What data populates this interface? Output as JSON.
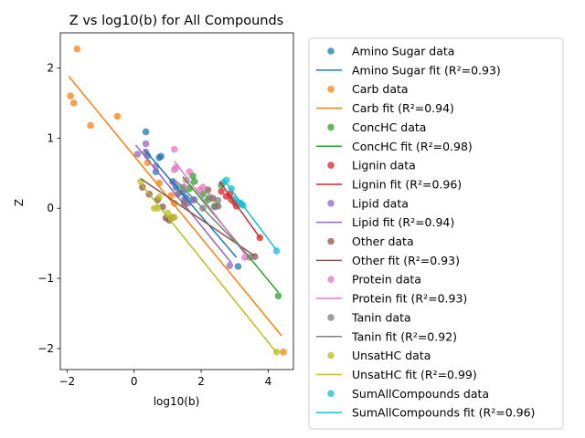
{
  "chart_data": {
    "type": "scatter",
    "title": "Z vs log10(b) for All Compounds",
    "xlabel": "log10(b)",
    "ylabel": "Z",
    "xlim": [
      -2.2,
      4.75
    ],
    "ylim": [
      -2.3,
      2.5
    ],
    "xticks": [
      -2,
      0,
      2,
      4
    ],
    "yticks": [
      -2,
      -1,
      0,
      1,
      2
    ],
    "legend_position": "outside-right",
    "series": [
      {
        "name": "Amino Sugar",
        "color": "#1f77b4",
        "data_label": "Amino Sugar data",
        "fit_label": "Amino Sugar fit (R²=0.93)",
        "points": [
          [
            0.35,
            1.09
          ],
          [
            0.4,
            0.75
          ],
          [
            0.65,
            0.52
          ],
          [
            0.75,
            0.72
          ],
          [
            0.8,
            0.74
          ],
          [
            1.15,
            0.38
          ],
          [
            1.25,
            0.3
          ],
          [
            1.45,
            0.23
          ],
          [
            1.55,
            0.15
          ],
          [
            1.75,
            0.12
          ],
          [
            3.1,
            -0.83
          ]
        ],
        "fit": [
          [
            0.3,
            0.84
          ],
          [
            3.05,
            -0.7
          ]
        ]
      },
      {
        "name": "Carb",
        "color": "#ff7f0e",
        "data_label": "Carb data",
        "fit_label": "Carb fit (R²=0.94)",
        "points": [
          [
            -1.9,
            1.6
          ],
          [
            -1.8,
            1.5
          ],
          [
            -1.7,
            2.27
          ],
          [
            -1.3,
            1.18
          ],
          [
            -0.5,
            1.31
          ],
          [
            0.4,
            0.65
          ],
          [
            0.75,
            0.36
          ],
          [
            1.1,
            0.18
          ],
          [
            1.2,
            0.07
          ],
          [
            1.5,
            0.05
          ],
          [
            4.45,
            -2.05
          ]
        ],
        "fit": [
          [
            -1.95,
            1.88
          ],
          [
            4.4,
            -1.82
          ]
        ]
      },
      {
        "name": "ConcHC",
        "color": "#2ca02c",
        "data_label": "ConcHC data",
        "fit_label": "ConcHC fit (R²=0.98)",
        "points": [
          [
            1.45,
            0.3
          ],
          [
            1.65,
            0.28
          ],
          [
            1.75,
            0.46
          ],
          [
            1.8,
            0.38
          ],
          [
            2.05,
            0.2
          ],
          [
            2.2,
            0.12
          ],
          [
            2.4,
            0.03
          ],
          [
            2.6,
            0.33
          ],
          [
            4.3,
            -1.25
          ]
        ],
        "fit": [
          [
            1.45,
            0.45
          ],
          [
            4.3,
            -1.2
          ]
        ]
      },
      {
        "name": "Lignin",
        "color": "#d62728",
        "data_label": "Lignin data",
        "fit_label": "Lignin fit (R²=0.96)",
        "points": [
          [
            2.6,
            0.24
          ],
          [
            2.75,
            0.17
          ],
          [
            2.85,
            0.2
          ],
          [
            2.9,
            0.12
          ],
          [
            3.0,
            0.08
          ],
          [
            3.05,
            0.03
          ],
          [
            3.75,
            -0.42
          ]
        ],
        "fit": [
          [
            2.55,
            0.38
          ],
          [
            3.75,
            -0.42
          ]
        ]
      },
      {
        "name": "Lipid",
        "color": "#9467bd",
        "data_label": "Lipid data",
        "fit_label": "Lipid fit (R²=0.94)",
        "points": [
          [
            0.1,
            0.77
          ],
          [
            0.35,
            0.92
          ],
          [
            0.35,
            0.8
          ],
          [
            0.65,
            0.6
          ],
          [
            1.2,
            0.36
          ],
          [
            1.3,
            0.2
          ],
          [
            1.5,
            0.13
          ],
          [
            1.6,
            0.07
          ],
          [
            1.8,
            0.12
          ],
          [
            2.85,
            -0.82
          ]
        ],
        "fit": [
          [
            0.05,
            0.9
          ],
          [
            2.9,
            -0.78
          ]
        ]
      },
      {
        "name": "Other",
        "color": "#8c564b",
        "data_label": "Other data",
        "fit_label": "Other fit (R²=0.93)",
        "points": [
          [
            0.25,
            0.3
          ],
          [
            0.45,
            0.2
          ],
          [
            0.7,
            0.12
          ],
          [
            0.85,
            0.02
          ],
          [
            0.95,
            -0.14
          ],
          [
            1.05,
            -0.17
          ],
          [
            1.15,
            -0.13
          ],
          [
            2.2,
            0.26
          ],
          [
            2.35,
            0.14
          ],
          [
            2.5,
            0.03
          ],
          [
            3.6,
            -0.69
          ]
        ],
        "fit": [
          [
            0.2,
            0.42
          ],
          [
            3.6,
            -0.68
          ]
        ]
      },
      {
        "name": "Protein",
        "color": "#e377c2",
        "data_label": "Protein data",
        "fit_label": "Protein fit (R²=0.93)",
        "points": [
          [
            1.2,
            0.84
          ],
          [
            1.25,
            0.58
          ],
          [
            1.2,
            0.55
          ],
          [
            1.65,
            0.52
          ],
          [
            1.55,
            0.4
          ],
          [
            1.5,
            0.3
          ],
          [
            2.05,
            0.3
          ],
          [
            1.95,
            0.26
          ],
          [
            3.3,
            -0.7
          ]
        ],
        "fit": [
          [
            1.2,
            0.67
          ],
          [
            3.3,
            -0.65
          ]
        ]
      },
      {
        "name": "Tanin",
        "color": "#7f7f7f",
        "data_label": "Tanin data",
        "fit_label": "Tanin fit (R²=0.92)",
        "points": [
          [
            1.35,
            0.22
          ],
          [
            1.5,
            0.08
          ],
          [
            2.05,
            0.0
          ],
          [
            2.25,
            0.16
          ],
          [
            2.4,
            0.02
          ],
          [
            2.5,
            0.11
          ],
          [
            3.45,
            -0.7
          ]
        ],
        "fit": [
          [
            1.3,
            0.37
          ],
          [
            3.5,
            -0.72
          ]
        ]
      },
      {
        "name": "UnsatHC",
        "color": "#bcbd22",
        "data_label": "UnsatHC data",
        "fit_label": "UnsatHC fit (R²=0.99)",
        "points": [
          [
            0.2,
            0.38
          ],
          [
            0.6,
            0.0
          ],
          [
            0.7,
            0.0
          ],
          [
            0.75,
            0.16
          ],
          [
            1.0,
            -0.07
          ],
          [
            1.1,
            -0.13
          ],
          [
            1.2,
            -0.13
          ],
          [
            4.25,
            -2.05
          ]
        ],
        "fit": [
          [
            0.2,
            0.35
          ],
          [
            4.25,
            -2.06
          ]
        ]
      },
      {
        "name": "SumAllCompounds",
        "color": "#17becf",
        "data_label": "SumAllCompounds data",
        "fit_label": "SumAllCompounds fit (R²=0.96)",
        "points": [
          [
            2.65,
            0.36
          ],
          [
            2.75,
            0.4
          ],
          [
            2.9,
            0.28
          ],
          [
            3.0,
            0.13
          ],
          [
            3.15,
            0.08
          ],
          [
            3.2,
            0.06
          ],
          [
            3.25,
            0.04
          ],
          [
            4.25,
            -0.61
          ]
        ],
        "fit": [
          [
            2.65,
            0.42
          ],
          [
            4.25,
            -0.6
          ]
        ]
      }
    ]
  }
}
